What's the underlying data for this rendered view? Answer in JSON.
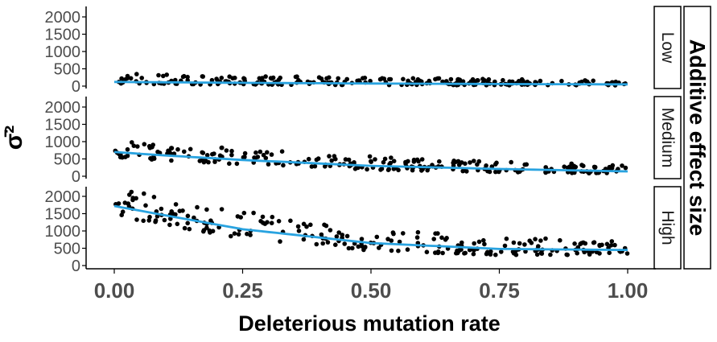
{
  "chart_data": {
    "type": "scatter",
    "xlabel": "Deleterious mutation rate",
    "ylabel": "σ̄²",
    "facet_label": "Additive effect size",
    "xlim": [
      0,
      1
    ],
    "ylim": [
      0,
      2300
    ],
    "x_ticks": [
      0,
      0.25,
      0.5,
      0.75,
      1
    ],
    "x_tick_labels": [
      "0.00",
      "0.25",
      "0.50",
      "0.75",
      "1.00"
    ],
    "y_ticks": [
      0,
      500,
      1000,
      1500,
      2000
    ],
    "y_tick_labels": [
      "0",
      "500",
      "1000",
      "1500",
      "2000"
    ],
    "grid": false,
    "colors": {
      "points": "#000000",
      "fit_line": "#29a3e0",
      "axis": "#000000"
    },
    "panels": [
      {
        "name": "Low",
        "trend": {
          "x": [
            0,
            0.25,
            0.5,
            0.75,
            1
          ],
          "y": [
            120,
            95,
            75,
            60,
            50
          ]
        },
        "scatter_summary": {
          "n_points": 240,
          "x_range": [
            0,
            1
          ],
          "y_spread": [
            -60,
            240
          ]
        }
      },
      {
        "name": "Medium",
        "trend": {
          "x": [
            0,
            0.1,
            0.25,
            0.5,
            0.75,
            1
          ],
          "y": [
            700,
            600,
            470,
            300,
            210,
            140
          ]
        },
        "scatter_summary": {
          "n_points": 240,
          "x_range": [
            0,
            1
          ],
          "y_spread": [
            -150,
            380
          ]
        }
      },
      {
        "name": "High",
        "trend": {
          "x": [
            0,
            0.1,
            0.25,
            0.5,
            0.75,
            1
          ],
          "y": [
            1720,
            1450,
            1050,
            650,
            480,
            450
          ]
        },
        "scatter_summary": {
          "n_points": 240,
          "x_range": [
            0,
            1
          ],
          "y_spread": [
            -300,
            600
          ]
        }
      }
    ]
  }
}
